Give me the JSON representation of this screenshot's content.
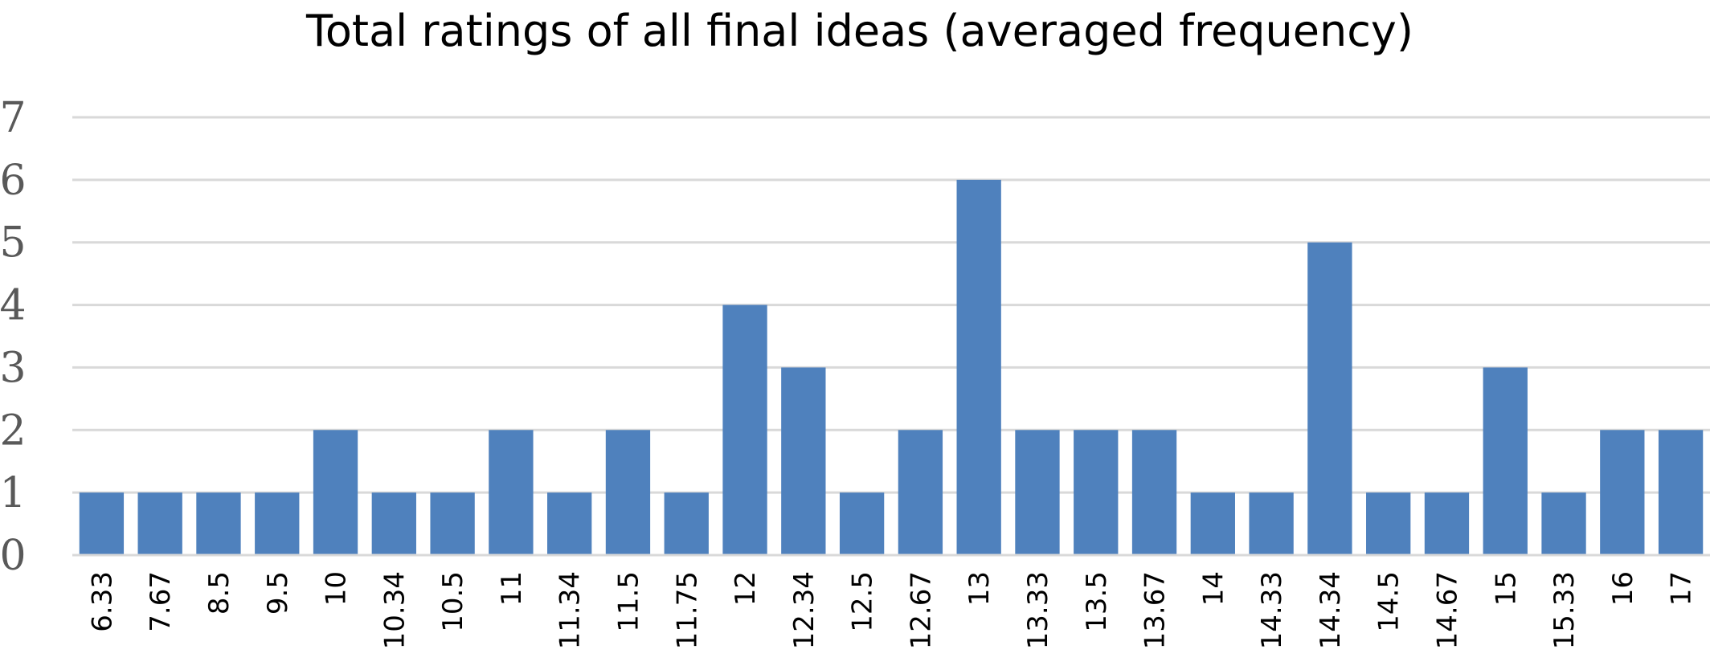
{
  "chart_data": {
    "type": "bar",
    "title": "Total ratings of all final ideas (averaged frequency)",
    "xlabel": "",
    "ylabel": "",
    "categories": [
      "6.33",
      "7.67",
      "8.5",
      "9.5",
      "10",
      "10.34",
      "10.5",
      "11",
      "11.34",
      "11.5",
      "11.75",
      "12",
      "12.34",
      "12.5",
      "12.67",
      "13",
      "13.33",
      "13.5",
      "13.67",
      "14",
      "14.33",
      "14.34",
      "14.5",
      "14.67",
      "15",
      "15.33",
      "16",
      "17"
    ],
    "values": [
      1,
      1,
      1,
      1,
      2,
      1,
      1,
      2,
      1,
      2,
      1,
      4,
      3,
      1,
      2,
      6,
      2,
      2,
      2,
      1,
      1,
      5,
      1,
      1,
      3,
      1,
      2,
      2
    ],
    "ylim": [
      0,
      7
    ],
    "yticks": [
      "0",
      "1",
      "2",
      "3",
      "4",
      "5",
      "6",
      "7"
    ],
    "grid": true,
    "legend": "none",
    "bar_color": "#4f81bd"
  }
}
